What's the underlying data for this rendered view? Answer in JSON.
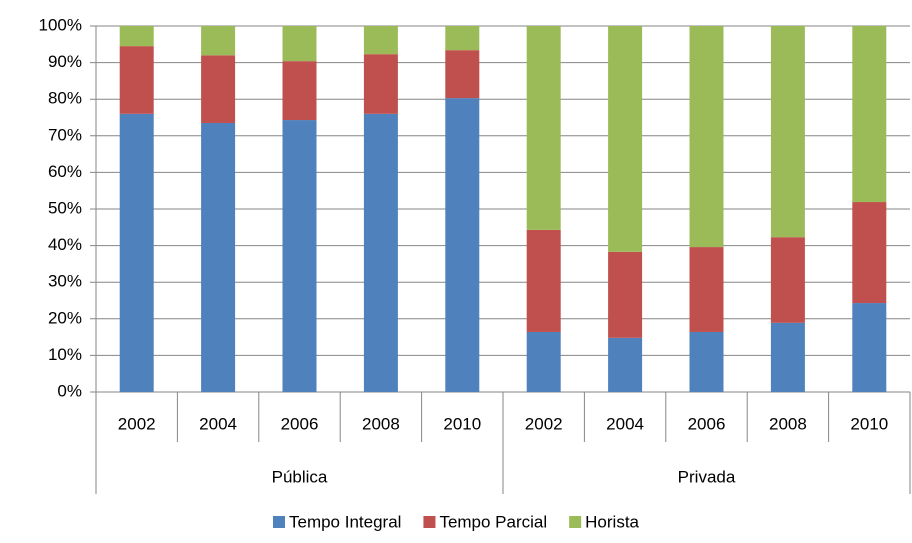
{
  "chart_data": {
    "type": "stacked_bar_percent",
    "categories": [
      "2002",
      "2004",
      "2006",
      "2008",
      "2010",
      "2002",
      "2004",
      "2006",
      "2008",
      "2010"
    ],
    "group_labels": [
      "Pública",
      "Privada"
    ],
    "series": [
      {
        "name": "Tempo Integral",
        "color": "#4f81bd",
        "values": [
          76,
          73.5,
          74.3,
          76,
          80.3,
          16.4,
          14.8,
          16.4,
          18.9,
          24.3
        ]
      },
      {
        "name": "Tempo Parcial",
        "color": "#c0504d",
        "values": [
          18.5,
          18.5,
          16.1,
          16.3,
          13.1,
          27.9,
          23.5,
          23.2,
          23.4,
          27.6
        ]
      },
      {
        "name": "Horista",
        "color": "#9bbb59",
        "values": [
          5.5,
          8,
          9.6,
          7.7,
          6.6,
          55.7,
          61.7,
          60.4,
          57.7,
          48.1
        ]
      }
    ],
    "ylim": [
      0,
      100
    ],
    "yticks": [
      {
        "value": 0,
        "label": "0%"
      },
      {
        "value": 10,
        "label": "10%"
      },
      {
        "value": 20,
        "label": "20%"
      },
      {
        "value": 30,
        "label": "30%"
      },
      {
        "value": 40,
        "label": "40%"
      },
      {
        "value": 50,
        "label": "50%"
      },
      {
        "value": 60,
        "label": "60%"
      },
      {
        "value": 70,
        "label": "70%"
      },
      {
        "value": 80,
        "label": "80%"
      },
      {
        "value": 90,
        "label": "90%"
      },
      {
        "value": 100,
        "label": "100%"
      }
    ],
    "grid": true,
    "legend": "bottom"
  }
}
